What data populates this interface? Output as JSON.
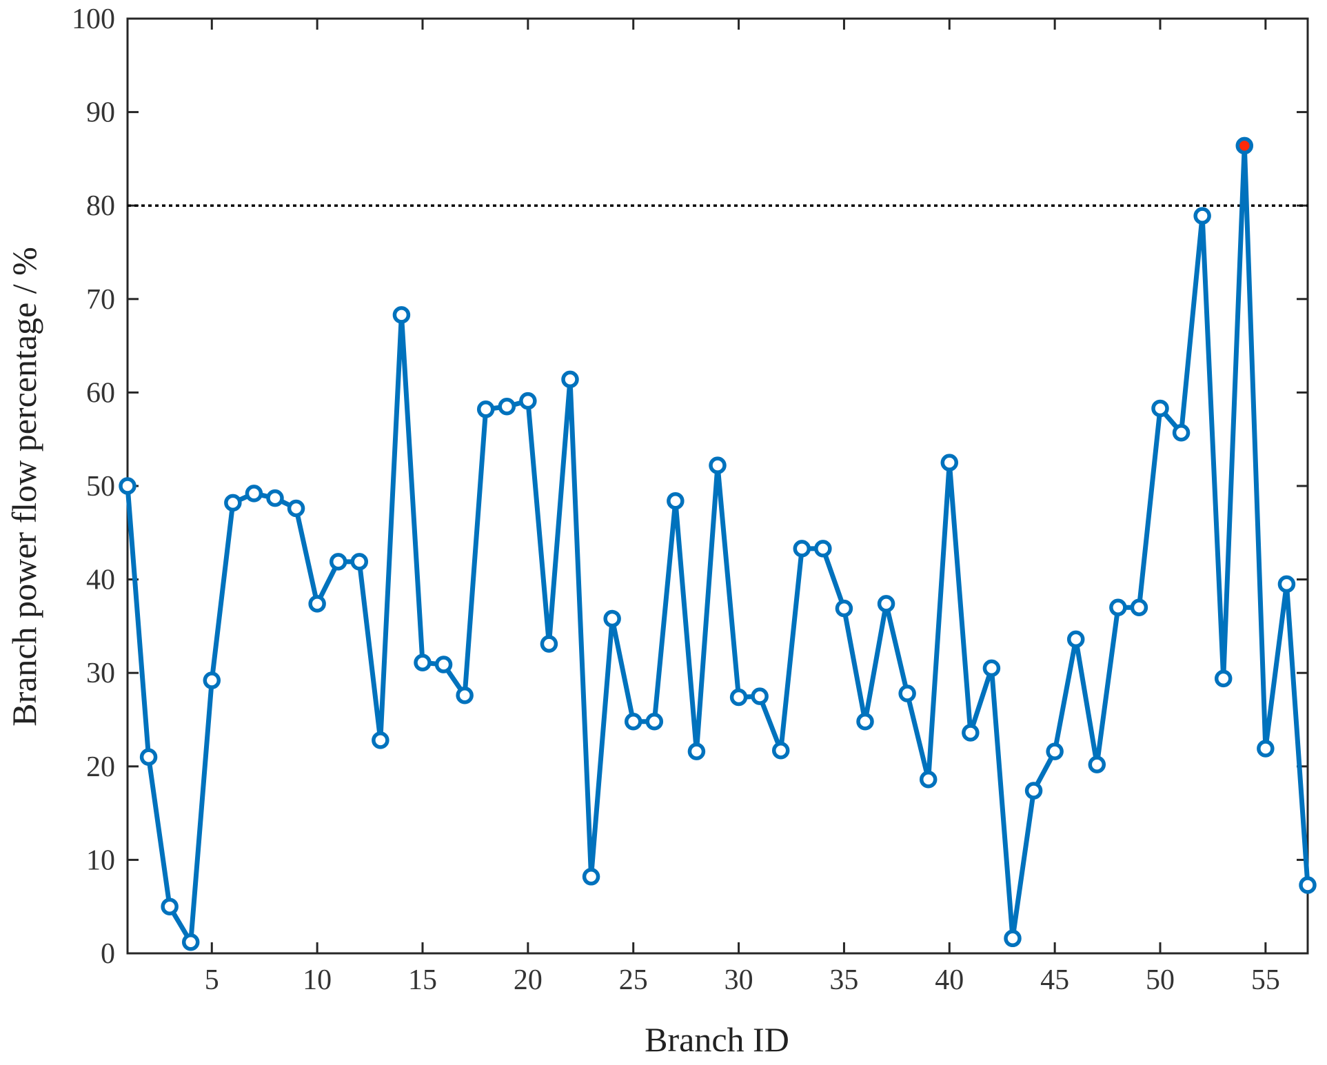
{
  "chart_data": {
    "type": "line",
    "title": "",
    "xlabel": "Branch ID",
    "ylabel": "Branch power flow percentage / %",
    "xlim": [
      1,
      57
    ],
    "ylim": [
      0,
      100
    ],
    "xticks": [
      5,
      10,
      15,
      20,
      25,
      30,
      35,
      40,
      45,
      50,
      55
    ],
    "yticks": [
      0,
      10,
      20,
      30,
      40,
      50,
      60,
      70,
      80,
      90,
      100
    ],
    "grid": false,
    "threshold": 80,
    "highlight_x": 54,
    "colors": {
      "line": "#0072BD",
      "highlight_fill": "#FF2A0A",
      "threshold": "#000000"
    },
    "series": [
      {
        "x": [
          1,
          2,
          3,
          4,
          5,
          6,
          7,
          8,
          9,
          10,
          11,
          12,
          13,
          14,
          15,
          16,
          17,
          18,
          19,
          20,
          21,
          22,
          23,
          24,
          25,
          26,
          27,
          28,
          29,
          30,
          31,
          32,
          33,
          34,
          35,
          36,
          37,
          38,
          39,
          40,
          41,
          42,
          43,
          44,
          45,
          46,
          47,
          48,
          49,
          50,
          51,
          52,
          53,
          54,
          55,
          56,
          57
        ],
        "values": [
          50.0,
          21.0,
          5.0,
          1.2,
          29.2,
          48.2,
          49.2,
          48.7,
          47.6,
          37.4,
          41.9,
          41.9,
          22.8,
          68.3,
          31.1,
          30.9,
          27.6,
          58.2,
          58.5,
          59.1,
          33.1,
          61.4,
          8.2,
          35.8,
          24.8,
          24.8,
          48.4,
          21.6,
          52.2,
          27.4,
          27.5,
          21.7,
          43.3,
          43.3,
          36.9,
          24.8,
          37.4,
          27.8,
          18.6,
          52.5,
          23.6,
          30.5,
          1.6,
          17.4,
          21.6,
          33.6,
          20.2,
          37.0,
          37.0,
          58.3,
          55.7,
          78.9,
          29.4,
          86.4,
          21.9,
          39.5,
          7.3
        ]
      }
    ]
  }
}
